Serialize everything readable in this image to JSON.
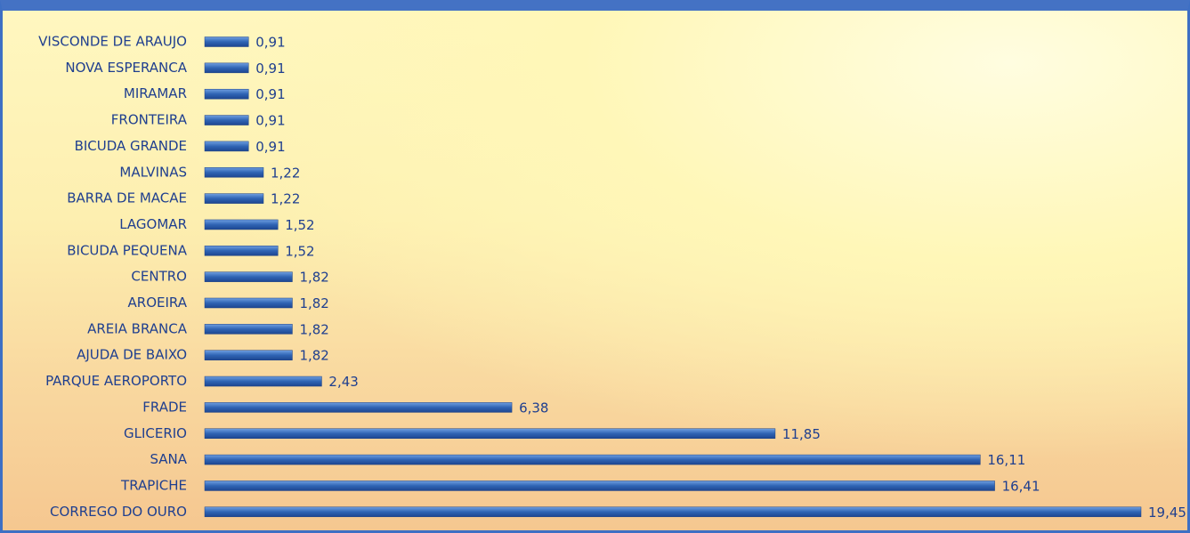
{
  "chart_data": {
    "type": "bar",
    "orientation": "horizontal",
    "color": "#2f64b4",
    "categories": [
      "VISCONDE DE ARAUJO",
      "NOVA ESPERANCA",
      "MIRAMAR",
      "FRONTEIRA",
      "BICUDA GRANDE",
      "MALVINAS",
      "BARRA DE MACAE",
      "LAGOMAR",
      "BICUDA PEQUENA",
      "CENTRO",
      "AROEIRA",
      "AREIA BRANCA",
      "AJUDA DE BAIXO",
      "PARQUE AEROPORTO",
      "FRADE",
      "GLICERIO",
      "SANA",
      "TRAPICHE",
      "CORREGO DO OURO"
    ],
    "values": [
      0.91,
      0.91,
      0.91,
      0.91,
      0.91,
      1.22,
      1.22,
      1.52,
      1.52,
      1.82,
      1.82,
      1.82,
      1.82,
      2.43,
      6.38,
      11.85,
      16.11,
      16.41,
      19.45
    ],
    "value_labels": [
      "0,91",
      "0,91",
      "0,91",
      "0,91",
      "0,91",
      "1,22",
      "1,22",
      "1,52",
      "1,52",
      "1,82",
      "1,82",
      "1,82",
      "1,82",
      "2,43",
      "6,38",
      "11,85",
      "16,11",
      "16,41",
      "19,45"
    ]
  }
}
